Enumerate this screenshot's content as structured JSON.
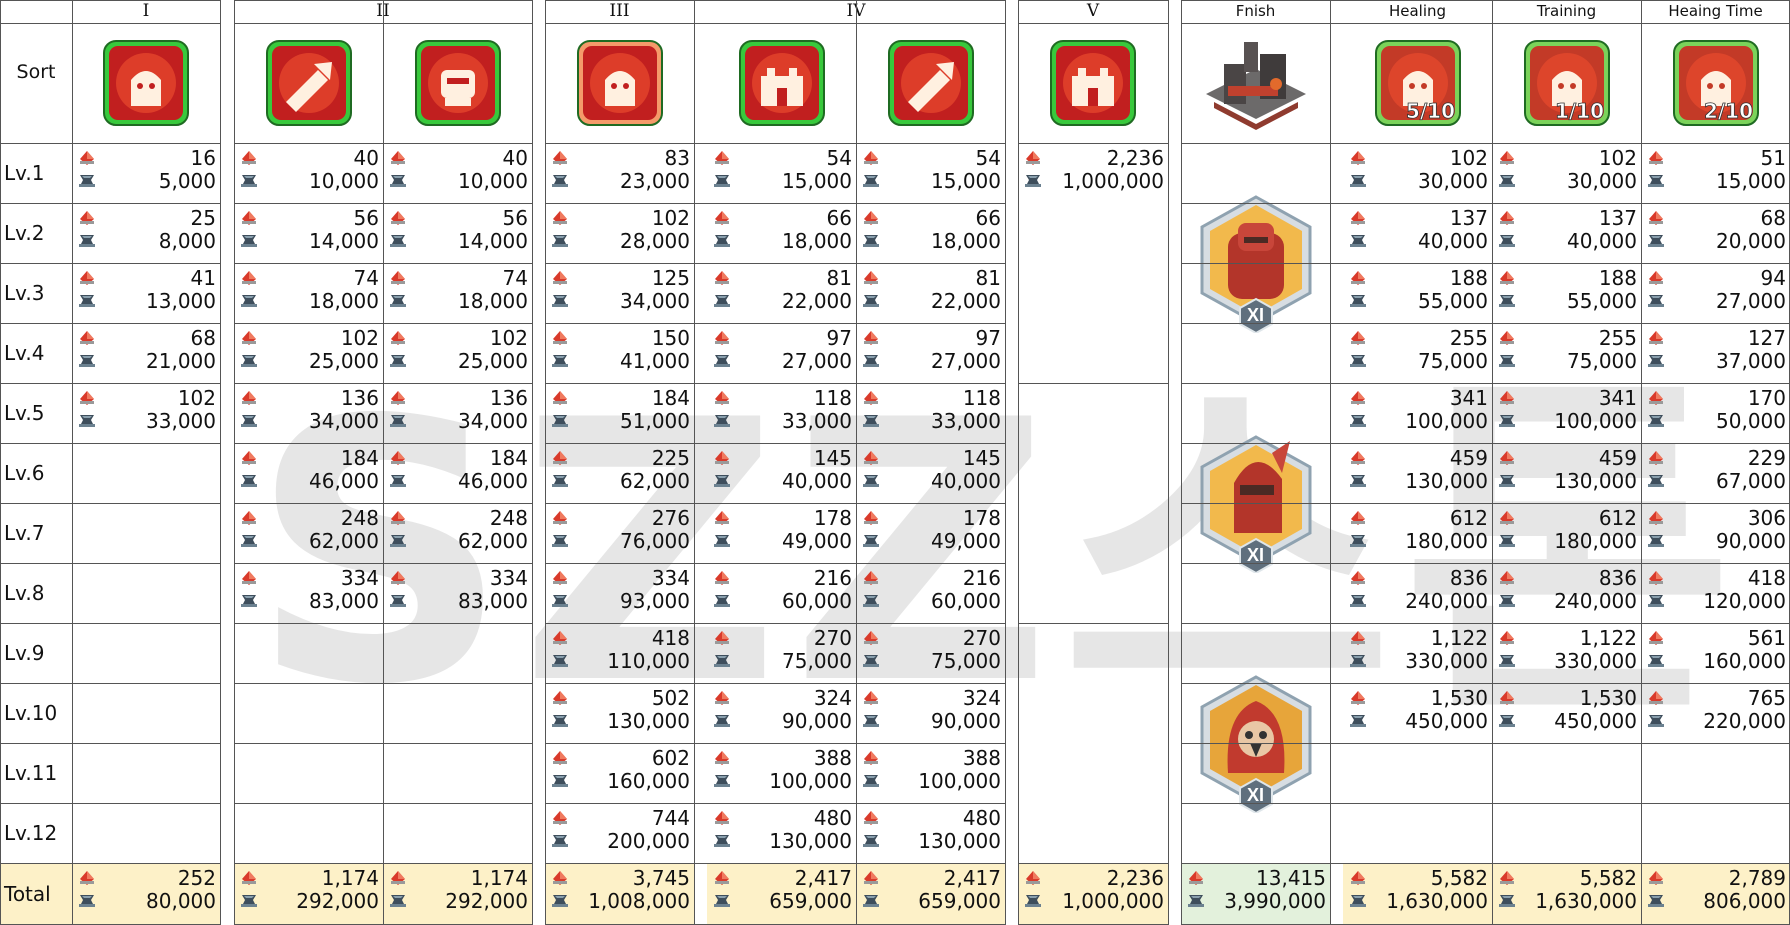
{
  "headers": {
    "sort": "Sort",
    "groups": [
      "I",
      "II",
      "III",
      "IV",
      "V",
      "Fnish",
      "Healing",
      "Training",
      "Heaing Time"
    ]
  },
  "row_labels": [
    "Lv.1",
    "Lv.2",
    "Lv.3",
    "Lv.4",
    "Lv.5",
    "Lv.6",
    "Lv.7",
    "Lv.8",
    "Lv.9",
    "Lv.10",
    "Lv.11",
    "Lv.12",
    "Total"
  ],
  "icon_badges": {
    "healing": "5/10",
    "training": "1/10",
    "healing_time": "2/10"
  },
  "hero_badge": "XI",
  "watermark": "SZZ스톤",
  "columns": [
    {
      "name": "I-1",
      "values": [
        [
          "16",
          "5,000"
        ],
        [
          "25",
          "8,000"
        ],
        [
          "41",
          "13,000"
        ],
        [
          "68",
          "21,000"
        ],
        [
          "102",
          "33,000"
        ],
        null,
        null,
        null,
        null,
        null,
        null,
        null
      ],
      "total": [
        "252",
        "80,000"
      ]
    },
    {
      "name": "II-1",
      "values": [
        [
          "40",
          "10,000"
        ],
        [
          "56",
          "14,000"
        ],
        [
          "74",
          "18,000"
        ],
        [
          "102",
          "25,000"
        ],
        [
          "136",
          "34,000"
        ],
        [
          "184",
          "46,000"
        ],
        [
          "248",
          "62,000"
        ],
        [
          "334",
          "83,000"
        ],
        null,
        null,
        null,
        null
      ],
      "total": [
        "1,174",
        "292,000"
      ]
    },
    {
      "name": "II-2",
      "values": [
        [
          "40",
          "10,000"
        ],
        [
          "56",
          "14,000"
        ],
        [
          "74",
          "18,000"
        ],
        [
          "102",
          "25,000"
        ],
        [
          "136",
          "34,000"
        ],
        [
          "184",
          "46,000"
        ],
        [
          "248",
          "62,000"
        ],
        [
          "334",
          "83,000"
        ],
        null,
        null,
        null,
        null
      ],
      "total": [
        "1,174",
        "292,000"
      ]
    },
    {
      "name": "III-1",
      "values": [
        [
          "83",
          "23,000"
        ],
        [
          "102",
          "28,000"
        ],
        [
          "125",
          "34,000"
        ],
        [
          "150",
          "41,000"
        ],
        [
          "184",
          "51,000"
        ],
        [
          "225",
          "62,000"
        ],
        [
          "276",
          "76,000"
        ],
        [
          "334",
          "93,000"
        ],
        [
          "418",
          "110,000"
        ],
        [
          "502",
          "130,000"
        ],
        [
          "602",
          "160,000"
        ],
        [
          "744",
          "200,000"
        ]
      ],
      "total": [
        "3,745",
        "1,008,000"
      ]
    },
    {
      "name": "IV-1",
      "values": [
        [
          "54",
          "15,000"
        ],
        [
          "66",
          "18,000"
        ],
        [
          "81",
          "22,000"
        ],
        [
          "97",
          "27,000"
        ],
        [
          "118",
          "33,000"
        ],
        [
          "145",
          "40,000"
        ],
        [
          "178",
          "49,000"
        ],
        [
          "216",
          "60,000"
        ],
        [
          "270",
          "75,000"
        ],
        [
          "324",
          "90,000"
        ],
        [
          "388",
          "100,000"
        ],
        [
          "480",
          "130,000"
        ]
      ],
      "total": [
        "2,417",
        "659,000"
      ]
    },
    {
      "name": "IV-2",
      "values": [
        [
          "54",
          "15,000"
        ],
        [
          "66",
          "18,000"
        ],
        [
          "81",
          "22,000"
        ],
        [
          "97",
          "27,000"
        ],
        [
          "118",
          "33,000"
        ],
        [
          "145",
          "40,000"
        ],
        [
          "178",
          "49,000"
        ],
        [
          "216",
          "60,000"
        ],
        [
          "270",
          "75,000"
        ],
        [
          "324",
          "90,000"
        ],
        [
          "388",
          "100,000"
        ],
        [
          "480",
          "130,000"
        ]
      ],
      "total": [
        "2,417",
        "659,000"
      ]
    },
    {
      "name": "V-1",
      "values": [
        [
          "2,236",
          "1,000,000"
        ],
        null,
        null,
        null,
        null,
        null,
        null,
        null,
        null,
        null,
        null,
        null
      ],
      "total": [
        "2,236",
        "1,000,000"
      ]
    },
    {
      "name": "Fnish",
      "values": [
        null,
        null,
        null,
        null,
        null,
        null,
        null,
        null,
        null,
        null,
        null,
        null
      ],
      "total": [
        "13,415",
        "3,990,000"
      ]
    },
    {
      "name": "Healing",
      "values": [
        [
          "102",
          "30,000"
        ],
        [
          "137",
          "40,000"
        ],
        [
          "188",
          "55,000"
        ],
        [
          "255",
          "75,000"
        ],
        [
          "341",
          "100,000"
        ],
        [
          "459",
          "130,000"
        ],
        [
          "612",
          "180,000"
        ],
        [
          "836",
          "240,000"
        ],
        [
          "1,122",
          "330,000"
        ],
        [
          "1,530",
          "450,000"
        ],
        null,
        null
      ],
      "total": [
        "5,582",
        "1,630,000"
      ]
    },
    {
      "name": "Training",
      "values": [
        [
          "102",
          "30,000"
        ],
        [
          "137",
          "40,000"
        ],
        [
          "188",
          "55,000"
        ],
        [
          "255",
          "75,000"
        ],
        [
          "341",
          "100,000"
        ],
        [
          "459",
          "130,000"
        ],
        [
          "612",
          "180,000"
        ],
        [
          "836",
          "240,000"
        ],
        [
          "1,122",
          "330,000"
        ],
        [
          "1,530",
          "450,000"
        ],
        null,
        null
      ],
      "total": [
        "5,582",
        "1,630,000"
      ]
    },
    {
      "name": "Heaing Time",
      "values": [
        [
          "51",
          "15,000"
        ],
        [
          "68",
          "20,000"
        ],
        [
          "94",
          "27,000"
        ],
        [
          "127",
          "37,000"
        ],
        [
          "170",
          "50,000"
        ],
        [
          "229",
          "67,000"
        ],
        [
          "306",
          "90,000"
        ],
        [
          "418",
          "120,000"
        ],
        [
          "561",
          "160,000"
        ],
        [
          "765",
          "220,000"
        ],
        null,
        null
      ],
      "total": [
        "2,789",
        "806,000"
      ]
    }
  ],
  "colors": {
    "gem": "#d93a2b",
    "anvil": "#3e4e5c",
    "total_bg": "#fdf1c8",
    "finish_total_bg": "#e3f1dc",
    "grid": "#555555"
  },
  "icons": [
    "research-icon-i",
    "research-icon-ii-a",
    "research-icon-ii-b",
    "research-icon-iii",
    "research-icon-iv-a",
    "research-icon-iv-b",
    "research-icon-v",
    "building-icon",
    "healing-icon",
    "training-icon",
    "healing-time-icon"
  ]
}
